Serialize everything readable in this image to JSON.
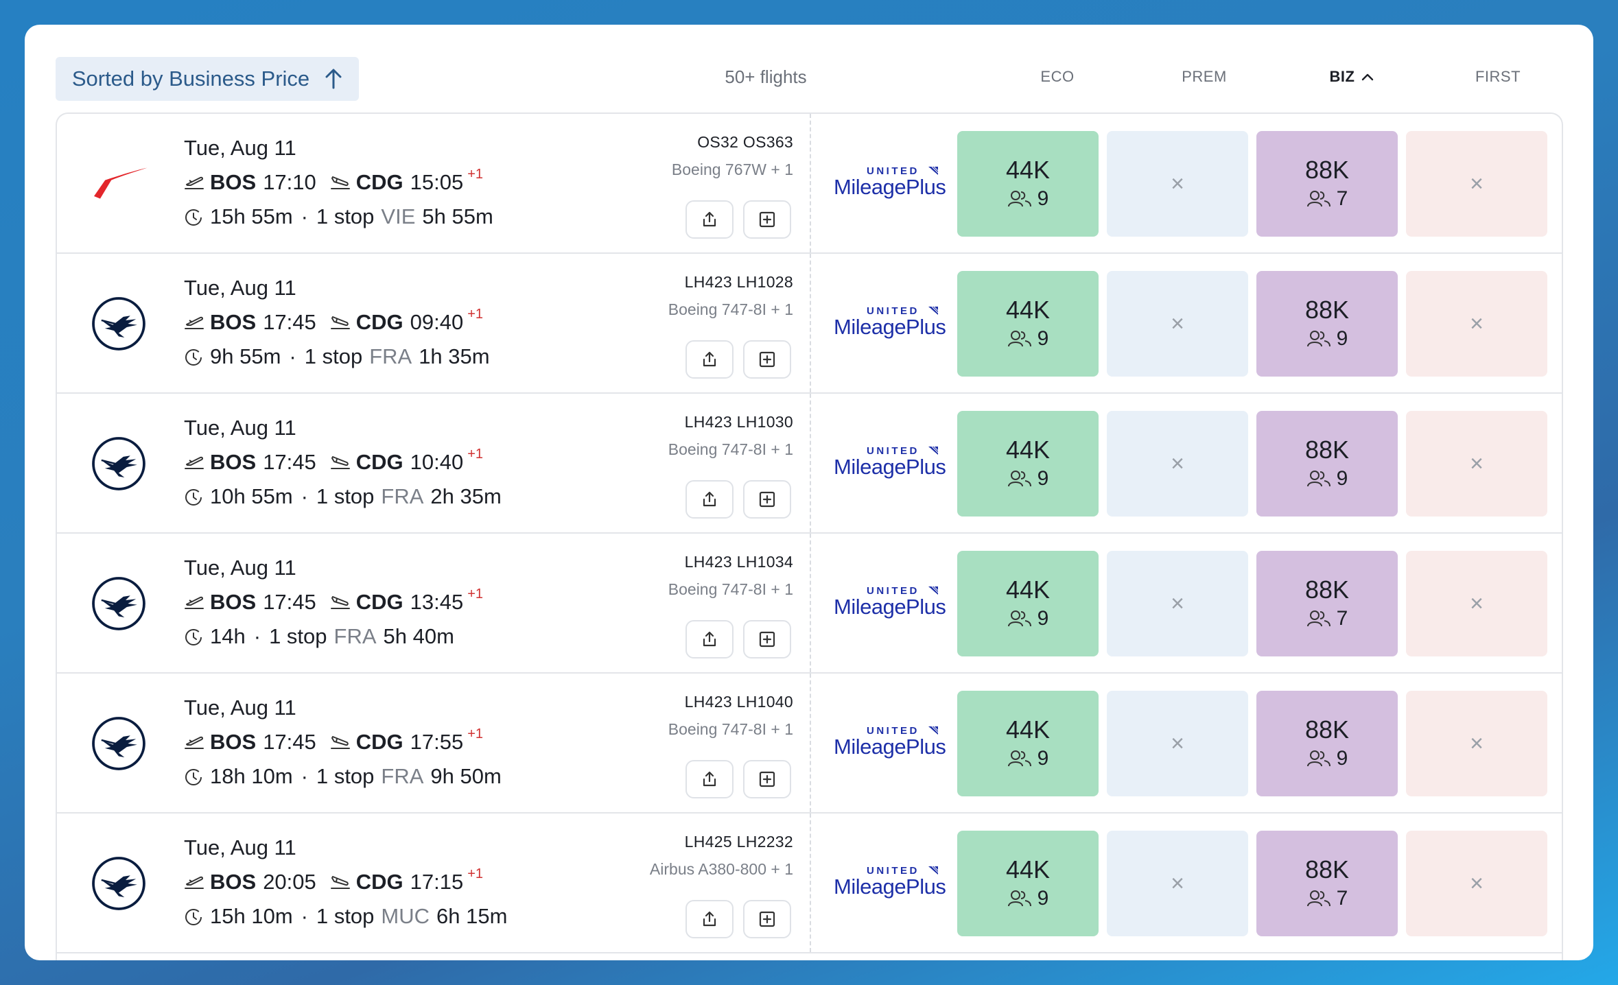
{
  "header": {
    "sort_label": "Sorted by Business Price",
    "flight_count": "50+ flights",
    "columns": {
      "eco": "ECO",
      "prem": "PREM",
      "biz": "BIZ",
      "first": "FIRST"
    }
  },
  "colors": {
    "eco": "#a8dfc1",
    "prem": "#e8f0f8",
    "biz": "#d4bfdf",
    "first": "#f9ebea",
    "plus_day": "#d03131"
  },
  "unavailable_mark": "×",
  "rows": [
    {
      "airline_logo": "austrian-logo",
      "date": "Tue, Aug 11",
      "dep_code": "BOS",
      "dep_time": "17:10",
      "arr_code": "CDG",
      "arr_time": "15:05",
      "day_offset": "+1",
      "duration": "15h 55m",
      "stops": "1 stop",
      "via": "VIE",
      "layover": "5h 55m",
      "flight_numbers": "OS32  OS363",
      "aircraft": "Boeing 767W + 1",
      "program": "United MileagePlus",
      "eco": {
        "price": "44K",
        "seats": "9"
      },
      "biz": {
        "price": "88K",
        "seats": "7"
      }
    },
    {
      "airline_logo": "lufthansa-logo",
      "date": "Tue, Aug 11",
      "dep_code": "BOS",
      "dep_time": "17:45",
      "arr_code": "CDG",
      "arr_time": "09:40",
      "day_offset": "+1",
      "duration": "9h 55m",
      "stops": "1 stop",
      "via": "FRA",
      "layover": "1h 35m",
      "flight_numbers": "LH423  LH1028",
      "aircraft": "Boeing 747-8I + 1",
      "program": "United MileagePlus",
      "eco": {
        "price": "44K",
        "seats": "9"
      },
      "biz": {
        "price": "88K",
        "seats": "9"
      }
    },
    {
      "airline_logo": "lufthansa-logo",
      "date": "Tue, Aug 11",
      "dep_code": "BOS",
      "dep_time": "17:45",
      "arr_code": "CDG",
      "arr_time": "10:40",
      "day_offset": "+1",
      "duration": "10h 55m",
      "stops": "1 stop",
      "via": "FRA",
      "layover": "2h 35m",
      "flight_numbers": "LH423  LH1030",
      "aircraft": "Boeing 747-8I + 1",
      "program": "United MileagePlus",
      "eco": {
        "price": "44K",
        "seats": "9"
      },
      "biz": {
        "price": "88K",
        "seats": "9"
      }
    },
    {
      "airline_logo": "lufthansa-logo",
      "date": "Tue, Aug 11",
      "dep_code": "BOS",
      "dep_time": "17:45",
      "arr_code": "CDG",
      "arr_time": "13:45",
      "day_offset": "+1",
      "duration": "14h",
      "stops": "1 stop",
      "via": "FRA",
      "layover": "5h 40m",
      "flight_numbers": "LH423  LH1034",
      "aircraft": "Boeing 747-8I + 1",
      "program": "United MileagePlus",
      "eco": {
        "price": "44K",
        "seats": "9"
      },
      "biz": {
        "price": "88K",
        "seats": "7"
      }
    },
    {
      "airline_logo": "lufthansa-logo",
      "date": "Tue, Aug 11",
      "dep_code": "BOS",
      "dep_time": "17:45",
      "arr_code": "CDG",
      "arr_time": "17:55",
      "day_offset": "+1",
      "duration": "18h 10m",
      "stops": "1 stop",
      "via": "FRA",
      "layover": "9h 50m",
      "flight_numbers": "LH423  LH1040",
      "aircraft": "Boeing 747-8I + 1",
      "program": "United MileagePlus",
      "eco": {
        "price": "44K",
        "seats": "9"
      },
      "biz": {
        "price": "88K",
        "seats": "9"
      }
    },
    {
      "airline_logo": "lufthansa-logo",
      "date": "Tue, Aug 11",
      "dep_code": "BOS",
      "dep_time": "20:05",
      "arr_code": "CDG",
      "arr_time": "17:15",
      "day_offset": "+1",
      "duration": "15h 10m",
      "stops": "1 stop",
      "via": "MUC",
      "layover": "6h 15m",
      "flight_numbers": "LH425  LH2232",
      "aircraft": "Airbus A380-800 + 1",
      "program": "United MileagePlus",
      "eco": {
        "price": "44K",
        "seats": "9"
      },
      "biz": {
        "price": "88K",
        "seats": "7"
      }
    }
  ]
}
